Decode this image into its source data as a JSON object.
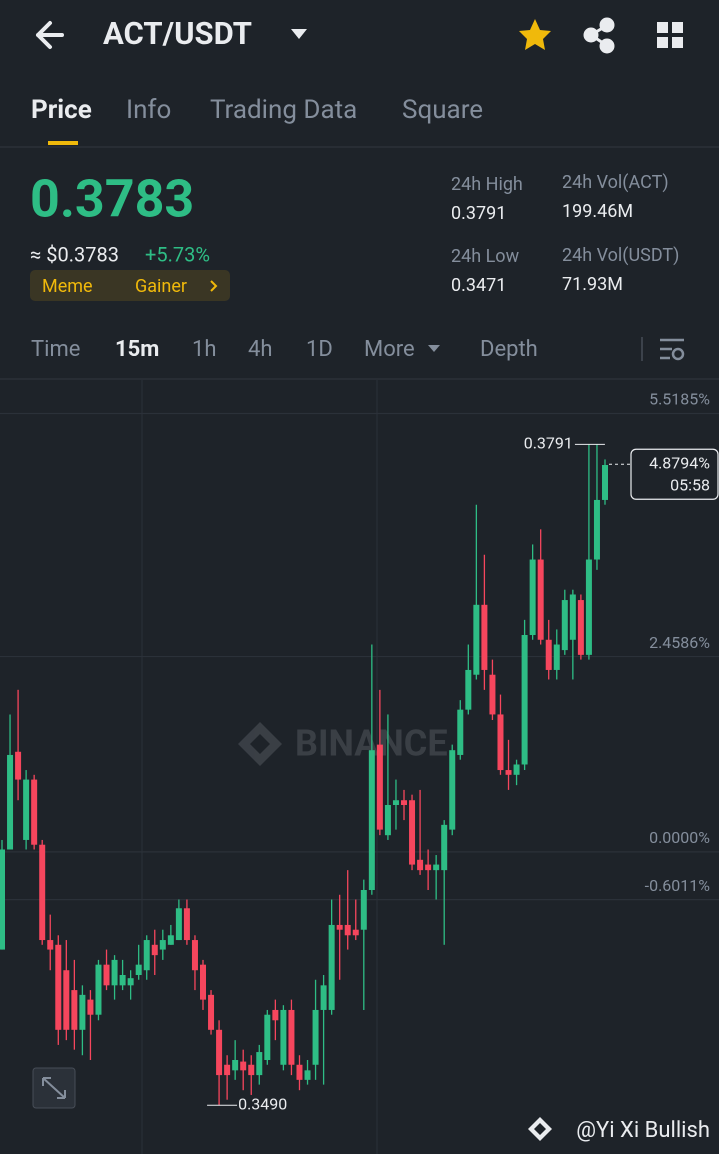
{
  "header": {
    "pair": "ACT/USDT"
  },
  "tabs": [
    "Price",
    "Info",
    "Trading Data",
    "Square"
  ],
  "price": {
    "last": "0.3783",
    "usd": "≈ $0.3783",
    "change": "+5.73%",
    "tags": [
      "Meme",
      "Gainer"
    ]
  },
  "stats": [
    {
      "label": "24h High",
      "value": "0.3791"
    },
    {
      "label": "24h Vol(ACT)",
      "value": "199.46M"
    },
    {
      "label": "24h Low",
      "value": "0.3471"
    },
    {
      "label": "24h Vol(USDT)",
      "value": "71.93M"
    }
  ],
  "intervals": [
    "Time",
    "15m",
    "1h",
    "4h",
    "1D",
    "More",
    "Depth"
  ],
  "chart_data": {
    "type": "candlestick",
    "watermark": "BINANCE",
    "ylim": [
      -3.69,
      5.94
    ],
    "yticks": [
      {
        "value": 5.5185,
        "label": "5.5185%"
      },
      {
        "value": 2.4586,
        "label": "2.4586%"
      },
      {
        "value": 0,
        "label": "0.0000%"
      },
      {
        "value": -0.6011,
        "label": "-0.6011%"
      }
    ],
    "up_color": "#2ebd85",
    "down_color": "#f6465d",
    "high_label": "0.3791",
    "low_label": "0.3490",
    "last": {
      "value": 4.8794,
      "label": "4.8794%"
    },
    "countdown": "05:58",
    "open": [
      -1.23,
      0.03,
      1.26,
      0.15,
      0.91,
      0.09,
      -1.11,
      -1.17,
      -1.49,
      -1.74,
      -2.24,
      -1.86,
      -2.05,
      -1.42,
      -1.68,
      -1.68,
      -1.68,
      -1.55,
      -1.49,
      -1.17,
      -1.23,
      -1.17,
      -1.11,
      -0.71,
      -1.11,
      -1.42,
      -1.8,
      -2.24,
      -2.68,
      -2.75,
      -2.64,
      -2.68,
      -2.81,
      -2.62,
      -1.99,
      -2.68,
      -1.99,
      -2.68,
      -2.87,
      -2.68,
      -1.99,
      -1.99,
      -0.92,
      -0.92,
      -0.98,
      -0.98,
      -0.48,
      1.35,
      0.21,
      0.59,
      0.65,
      0.65,
      -0.1,
      -0.16,
      -0.23,
      -0.23,
      0.28,
      1.22,
      1.79,
      2.23,
      3.11,
      2.23,
      1.73,
      1.03,
      0.97,
      1.1,
      2.73,
      3.68,
      2.67,
      2.29,
      2.54,
      2.67,
      3.17,
      2.48,
      3.68,
      4.43
    ],
    "high": [
      0.15,
      1.73,
      2.04,
      1.03,
      0.97,
      0.15,
      -0.79,
      -1.05,
      -1.11,
      -1.36,
      -1.68,
      -1.74,
      -1.36,
      -1.23,
      -1.3,
      -1.36,
      -1.49,
      -1.17,
      -1.05,
      -0.98,
      -0.98,
      -0.92,
      -0.6,
      -0.6,
      -1.05,
      -1.36,
      -1.74,
      -2.12,
      -2.56,
      -2.37,
      -2.49,
      -2.56,
      -2.43,
      -1.99,
      -1.86,
      -1.93,
      -1.86,
      -2.56,
      -2.62,
      -1.61,
      -1.55,
      -0.6,
      -0.54,
      -0.23,
      -0.6,
      -0.35,
      2.61,
      2.04,
      1.73,
      0.91,
      0.78,
      0.72,
      0.78,
      0.03,
      -0.04,
      0.4,
      1.35,
      1.91,
      2.61,
      4.37,
      3.74,
      2.42,
      1.98,
      1.41,
      1.16,
      2.92,
      3.87,
      4.06,
      2.92,
      2.8,
      3.3,
      3.3,
      3.24,
      5.13,
      5.13,
      4.94
    ],
    "low": [
      -1.23,
      0.03,
      0.65,
      0.03,
      0.03,
      -1.17,
      -1.49,
      -2.43,
      -2.37,
      -2.49,
      -2.56,
      -2.62,
      -2.12,
      -1.74,
      -1.86,
      -1.74,
      -1.86,
      -1.61,
      -1.61,
      -1.55,
      -1.36,
      -1.17,
      -1.11,
      -1.17,
      -1.74,
      -1.99,
      -2.3,
      -3.19,
      -3.12,
      -2.87,
      -3.0,
      -3.06,
      -2.93,
      -2.68,
      -2.37,
      -2.75,
      -2.81,
      -3.0,
      -2.93,
      -2.87,
      -2.93,
      -2.05,
      -1.61,
      -1.23,
      -1.11,
      -1.99,
      -0.54,
      0.21,
      0.15,
      0.28,
      0.4,
      -0.23,
      -0.29,
      -0.48,
      -0.6,
      -1.17,
      0.21,
      1.16,
      1.73,
      2.17,
      2.04,
      1.66,
      0.97,
      0.78,
      0.84,
      1.03,
      2.67,
      2.61,
      2.17,
      2.17,
      2.48,
      2.17,
      2.42,
      2.42,
      3.55,
      4.37
    ],
    "close": [
      0.03,
      1.22,
      0.91,
      0.91,
      0.09,
      -1.11,
      -1.23,
      -2.24,
      -2.24,
      -2.24,
      -1.8,
      -2.05,
      -1.42,
      -1.68,
      -1.36,
      -1.55,
      -1.59,
      -1.42,
      -1.11,
      -1.3,
      -1.11,
      -1.05,
      -0.71,
      -1.11,
      -1.49,
      -1.86,
      -2.24,
      -2.81,
      -2.81,
      -2.62,
      -2.75,
      -2.81,
      -2.52,
      -2.05,
      -2.12,
      -1.99,
      -2.68,
      -2.87,
      -2.75,
      -1.99,
      -1.68,
      -0.92,
      -0.98,
      -1.05,
      -1.05,
      -0.48,
      1.28,
      0.28,
      0.59,
      0.65,
      0.59,
      -0.16,
      -0.23,
      -0.23,
      -0.16,
      0.34,
      1.28,
      1.79,
      2.29,
      3.11,
      2.29,
      1.73,
      1.03,
      0.97,
      1.1,
      2.73,
      3.68,
      2.67,
      2.29,
      2.61,
      3.17,
      3.24,
      2.48,
      3.68,
      4.43,
      4.87
    ]
  },
  "footer": "@Yi Xi Bullish"
}
